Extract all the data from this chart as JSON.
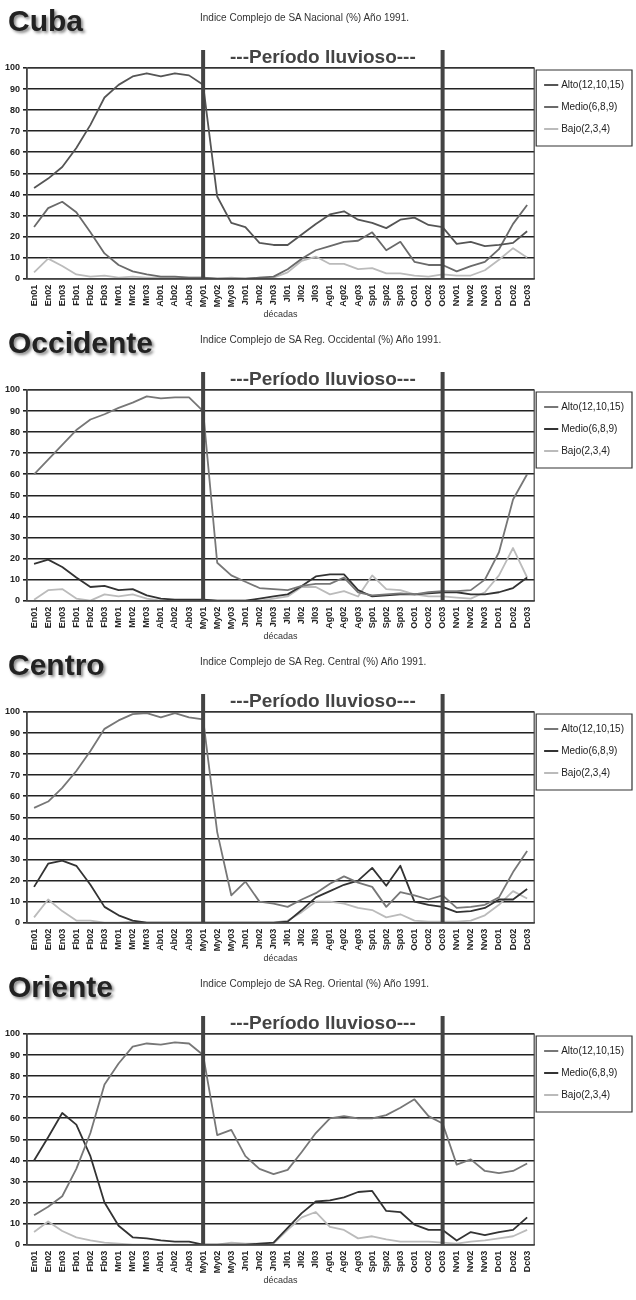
{
  "chart_data": [
    {
      "type": "line",
      "title": "Cuba",
      "subtitle": "Indice Complejo  de SA Nacional (%) Año 1991.",
      "xlabel": "décadas",
      "categories": [
        "En01",
        "En02",
        "En03",
        "Fb01",
        "Fb02",
        "Fb03",
        "Mr01",
        "Mr02",
        "Mr03",
        "Ab01",
        "Ab02",
        "Ab03",
        "My01",
        "My02",
        "My03",
        "Jn01",
        "Jn02",
        "Jn03",
        "Jl01",
        "Jl02",
        "Jl03",
        "Ag01",
        "Ag02",
        "Ag03",
        "Sp01",
        "Sp02",
        "Sp03",
        "Oc01",
        "Oc02",
        "Oc03",
        "Nv01",
        "Nv02",
        "Nv03",
        "Dc01",
        "Dc02",
        "Dc03"
      ],
      "series": [
        {
          "name": "Alto(12,10,15)",
          "color": "#555555",
          "values": [
            43,
            47.5,
            53,
            62,
            73,
            86,
            92,
            96,
            97.5,
            96,
            97.5,
            96.5,
            92,
            39,
            26.5,
            24.5,
            17,
            16,
            16,
            21,
            26,
            30.5,
            32,
            28,
            26.5,
            24,
            28,
            29,
            25.5,
            24.5,
            16.5,
            17.5,
            15.5,
            16,
            17,
            22.5
          ]
        },
        {
          "name": "Medio(6,8,9)",
          "color": "#6a6a6a",
          "values": [
            24.5,
            33.5,
            36.5,
            31.5,
            22,
            12,
            6.5,
            3.5,
            2,
            1,
            1,
            0.5,
            0.5,
            0,
            0,
            0,
            0.5,
            1,
            4.5,
            9.5,
            13.5,
            15.5,
            17.5,
            18,
            22,
            13.5,
            17.5,
            8,
            6.5,
            6.5,
            3.5,
            6,
            8,
            14,
            26,
            35
          ]
        },
        {
          "name": "Bajo(2,3,4)",
          "color": "#bbbbbb",
          "values": [
            3,
            9.5,
            6,
            2,
            1,
            1.5,
            0.5,
            1,
            0.5,
            0.5,
            0.5,
            0.5,
            0.5,
            0,
            0.5,
            0,
            0.5,
            0.5,
            3,
            8.5,
            10.5,
            7,
            7,
            4.5,
            5,
            2.5,
            2.5,
            1.5,
            1,
            2,
            1.5,
            1.5,
            4,
            9,
            14.5,
            10
          ]
        }
      ],
      "ylim": [
        0,
        100
      ],
      "yticks": [
        0,
        10,
        20,
        30,
        40,
        50,
        60,
        70,
        80,
        90,
        100
      ],
      "grid": "y",
      "legend": "right",
      "marker": "none",
      "ref_lines": [
        {
          "axis": "x",
          "value": "My01",
          "color": "#444444"
        },
        {
          "axis": "x",
          "value": "Oc03",
          "color": "#444444"
        }
      ],
      "annotations": [
        "---Período lluvioso---"
      ]
    },
    {
      "type": "line",
      "title": "Occidente",
      "subtitle": "Indice Complejo de SA Reg. Occidental (%) Año 1991.",
      "xlabel": "décadas",
      "categories": [
        "En01",
        "En02",
        "En03",
        "Fb01",
        "Fb02",
        "Fb03",
        "Mr01",
        "Mr02",
        "Mr03",
        "Ab01",
        "Ab02",
        "Ab03",
        "My01",
        "My02",
        "My03",
        "Jn01",
        "Jn02",
        "Jn03",
        "Jl01",
        "Jl02",
        "Jl03",
        "Ag01",
        "Ag02",
        "Ag03",
        "Sp01",
        "Sp02",
        "Sp03",
        "Oc01",
        "Oc02",
        "Oc03",
        "Nv01",
        "Nv02",
        "Nv03",
        "Dc01",
        "Dc02",
        "Dc03"
      ],
      "series": [
        {
          "name": "Alto(12,10,15)",
          "color": "#777777",
          "values": [
            60,
            67,
            74,
            81,
            86,
            88.5,
            91.5,
            94,
            97,
            96,
            96.5,
            96.5,
            90,
            18,
            12,
            9,
            6,
            5.5,
            5,
            7,
            8,
            8,
            11,
            4,
            2.5,
            3,
            3.5,
            3,
            4,
            4.5,
            4.5,
            5,
            10,
            23,
            48,
            60
          ]
        },
        {
          "name": "Medio(6,8,9)",
          "color": "#333333",
          "values": [
            17.5,
            19.5,
            16,
            11,
            6.5,
            7,
            5,
            5.5,
            2.5,
            1,
            0.5,
            0.5,
            0.5,
            0,
            0,
            0,
            1,
            2,
            3,
            7,
            11.5,
            12.5,
            12.5,
            5,
            2,
            2.5,
            3,
            3,
            3.5,
            4,
            4,
            3,
            3,
            4,
            6,
            11
          ]
        },
        {
          "name": "Bajo(2,3,4)",
          "color": "#bbbbbb",
          "values": [
            0.5,
            5,
            5.5,
            1,
            0,
            3,
            2,
            3,
            1,
            0,
            0,
            0,
            0.5,
            0,
            0,
            0,
            0,
            1,
            2,
            6.5,
            6.5,
            3,
            4.5,
            2,
            12,
            5.5,
            5,
            3,
            2,
            2,
            1.5,
            1,
            4,
            12,
            25,
            11
          ]
        }
      ],
      "ylim": [
        0,
        100
      ],
      "yticks": [
        0,
        10,
        20,
        30,
        40,
        50,
        60,
        70,
        80,
        90,
        100
      ],
      "grid": "y",
      "legend": "right",
      "marker": "none",
      "ref_lines": [
        {
          "axis": "x",
          "value": "My01",
          "color": "#444444"
        },
        {
          "axis": "x",
          "value": "Oc03",
          "color": "#444444"
        }
      ],
      "annotations": [
        "---Período lluvioso---"
      ]
    },
    {
      "type": "line",
      "title": "Centro",
      "subtitle": "Indice Complejo de SA Reg. Central (%) Año 1991.",
      "xlabel": "décadas",
      "categories": [
        "En01",
        "En02",
        "En03",
        "Fb01",
        "Fb02",
        "Fb03",
        "Mr01",
        "Mr02",
        "Mr03",
        "Ab01",
        "Ab02",
        "Ab03",
        "My01",
        "My02",
        "My03",
        "Jn01",
        "Jn02",
        "Jn03",
        "Jl01",
        "Jl02",
        "Jl03",
        "Ag01",
        "Ag02",
        "Ag03",
        "Sp01",
        "Sp02",
        "Sp03",
        "Oc01",
        "Oc02",
        "Oc03",
        "Nv01",
        "Nv02",
        "Nv03",
        "Dc01",
        "Dc02",
        "Dc03"
      ],
      "series": [
        {
          "name": "Alto(12,10,15)",
          "color": "#777777",
          "values": [
            54.5,
            57.5,
            64,
            72,
            81.5,
            92,
            96,
            99,
            99.5,
            97.5,
            99.5,
            97.5,
            96.5,
            43,
            13,
            19.5,
            10,
            9,
            7.5,
            11,
            14,
            18.5,
            22,
            19,
            17,
            7.5,
            14.5,
            13,
            11,
            13,
            7,
            7.5,
            8.5,
            12,
            24,
            34
          ]
        },
        {
          "name": "Medio(6,8,9)",
          "color": "#333333",
          "values": [
            17,
            28,
            29.5,
            27,
            18,
            7.5,
            3.5,
            1,
            0,
            0,
            0,
            0,
            0,
            0,
            0,
            0,
            0,
            0,
            0.5,
            6,
            12,
            15,
            18,
            20,
            26,
            17.5,
            27,
            10,
            8.5,
            7.5,
            5,
            5.5,
            7,
            11,
            11,
            16
          ]
        },
        {
          "name": "Bajo(2,3,4)",
          "color": "#bbbbbb",
          "values": [
            2.5,
            11,
            5.5,
            1,
            1,
            0,
            0,
            0.5,
            0,
            0,
            0,
            0,
            0,
            0,
            0,
            0,
            0,
            0,
            1,
            5,
            10,
            10,
            9,
            7,
            6,
            2.5,
            4,
            1,
            0.5,
            0.5,
            0.5,
            1,
            3.5,
            8.5,
            15,
            11.5
          ]
        }
      ],
      "ylim": [
        0,
        100
      ],
      "yticks": [
        0,
        10,
        20,
        30,
        40,
        50,
        60,
        70,
        80,
        90,
        100
      ],
      "grid": "y",
      "legend": "right",
      "marker": "none",
      "ref_lines": [
        {
          "axis": "x",
          "value": "My01",
          "color": "#444444"
        },
        {
          "axis": "x",
          "value": "Oc03",
          "color": "#444444"
        }
      ],
      "annotations": [
        "---Período lluvioso---"
      ]
    },
    {
      "type": "line",
      "title": "Oriente",
      "subtitle": "Indice Complejo de SA Reg. Oriental (%) Año 1991.",
      "xlabel": "décadas",
      "categories": [
        "En01",
        "En02",
        "En03",
        "Fb01",
        "Fb02",
        "Fb03",
        "Mr01",
        "Mr02",
        "Mr03",
        "Ab01",
        "Ab02",
        "Ab03",
        "My01",
        "My02",
        "My03",
        "Jn01",
        "Jn02",
        "Jn03",
        "Jl01",
        "Jl02",
        "Jl03",
        "Ag01",
        "Ag02",
        "Ag03",
        "Sp01",
        "Sp02",
        "Sp03",
        "Oc01",
        "Oc02",
        "Oc03",
        "Nv01",
        "Nv02",
        "Nv03",
        "Dc01",
        "Dc02",
        "Dc03"
      ],
      "series": [
        {
          "name": "Alto(12,10,15)",
          "color": "#777777",
          "values": [
            14,
            18,
            23,
            36,
            53,
            76,
            86,
            94,
            95.5,
            95,
            96,
            95.5,
            90,
            52,
            54.5,
            42,
            36,
            33.5,
            35.5,
            44,
            53,
            60,
            61,
            60,
            60,
            61.5,
            65,
            69,
            61,
            57.5,
            38,
            40.5,
            35,
            34,
            35,
            38.5
          ]
        },
        {
          "name": "Medio(6,8,9)",
          "color": "#333333",
          "values": [
            40,
            51,
            62.5,
            57,
            42,
            20,
            9,
            3.5,
            3,
            2,
            1.5,
            1.5,
            0,
            0,
            0,
            0,
            0.5,
            1,
            8,
            15,
            20.5,
            21,
            22.5,
            25,
            25.5,
            16,
            15.5,
            9.5,
            7,
            7,
            2,
            6,
            4.5,
            6,
            7,
            13
          ]
        },
        {
          "name": "Bajo(2,3,4)",
          "color": "#bbbbbb",
          "values": [
            6,
            11,
            6.5,
            3.5,
            2,
            1,
            0.5,
            0,
            0,
            0,
            0,
            0,
            0,
            0,
            1,
            0.5,
            0.5,
            0.5,
            7,
            13,
            15.5,
            8.5,
            7,
            3,
            4,
            2.5,
            1.5,
            1.5,
            1.5,
            1,
            0.5,
            1.5,
            2,
            3,
            4,
            7
          ]
        }
      ],
      "ylim": [
        0,
        100
      ],
      "yticks": [
        0,
        10,
        20,
        30,
        40,
        50,
        60,
        70,
        80,
        90,
        100
      ],
      "grid": "y",
      "legend": "right",
      "marker": "none",
      "ref_lines": [
        {
          "axis": "x",
          "value": "My01",
          "color": "#444444"
        },
        {
          "axis": "x",
          "value": "Oc03",
          "color": "#444444"
        }
      ],
      "annotations": [
        "---Período lluvioso---"
      ]
    }
  ]
}
